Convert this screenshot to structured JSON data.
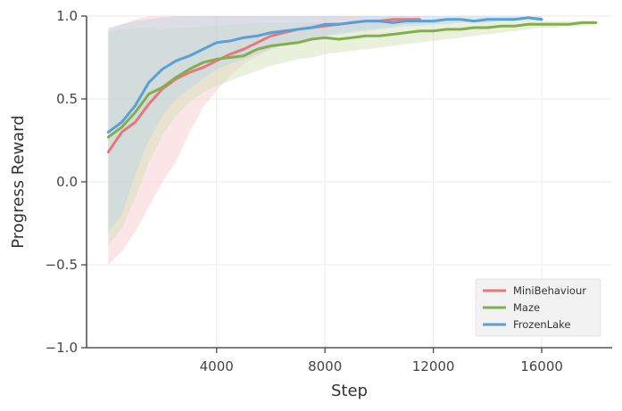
{
  "chart_data": {
    "type": "line",
    "xlabel": "Step",
    "ylabel": "Progress Reward",
    "xlim": [
      -800,
      18600
    ],
    "ylim": [
      -1.0,
      1.0
    ],
    "xticks": [
      4000,
      8000,
      12000,
      16000
    ],
    "xtick_labels": [
      "4000",
      "8000",
      "12000",
      "16000"
    ],
    "yticks": [
      -1.0,
      -0.5,
      0.0,
      0.5,
      1.0
    ],
    "ytick_labels": [
      "−1.0",
      "−0.5",
      "0.0",
      "0.5",
      "1.0"
    ],
    "grid": true,
    "legend_position": "bottom-right",
    "series": [
      {
        "name": "MiniBehaviour",
        "color": "#e8777c",
        "band_color": "#f8c6c8",
        "x": [
          0,
          500,
          1000,
          1500,
          2000,
          2500,
          3000,
          3500,
          4000,
          4500,
          5000,
          5500,
          6000,
          6500,
          7000,
          7500,
          8000,
          8500,
          9000,
          9500,
          10000,
          10500,
          11000,
          11500
        ],
        "y": [
          0.18,
          0.3,
          0.36,
          0.47,
          0.56,
          0.62,
          0.66,
          0.69,
          0.73,
          0.77,
          0.8,
          0.84,
          0.88,
          0.9,
          0.92,
          0.93,
          0.94,
          0.95,
          0.96,
          0.97,
          0.97,
          0.98,
          0.98,
          0.98
        ],
        "lower": [
          -0.5,
          -0.42,
          -0.3,
          -0.15,
          0.0,
          0.12,
          0.3,
          0.45,
          0.55,
          0.64,
          0.71,
          0.76,
          0.8,
          0.83,
          0.85,
          0.87,
          0.88,
          0.9,
          0.91,
          0.92,
          0.93,
          0.94,
          0.95,
          0.96
        ],
        "upper": [
          0.92,
          0.95,
          0.98,
          1.0,
          1.0,
          1.0,
          1.0,
          1.0,
          1.0,
          1.0,
          1.0,
          1.0,
          1.0,
          1.0,
          1.0,
          1.0,
          1.0,
          1.0,
          1.0,
          1.0,
          1.0,
          1.0,
          1.0,
          1.0
        ]
      },
      {
        "name": "Maze",
        "color": "#84ad4e",
        "band_color": "#cfe0b4",
        "x": [
          0,
          500,
          1000,
          1500,
          2000,
          2500,
          3000,
          3500,
          4000,
          4500,
          5000,
          5500,
          6000,
          6500,
          7000,
          7500,
          8000,
          8500,
          9000,
          9500,
          10000,
          10500,
          11000,
          11500,
          12000,
          12500,
          13000,
          13500,
          14000,
          14500,
          15000,
          15500,
          16000,
          16500,
          17000,
          17500,
          18000
        ],
        "y": [
          0.27,
          0.33,
          0.42,
          0.53,
          0.57,
          0.63,
          0.68,
          0.72,
          0.74,
          0.75,
          0.76,
          0.8,
          0.82,
          0.83,
          0.84,
          0.86,
          0.87,
          0.86,
          0.87,
          0.88,
          0.88,
          0.89,
          0.9,
          0.91,
          0.91,
          0.92,
          0.92,
          0.93,
          0.93,
          0.94,
          0.94,
          0.95,
          0.95,
          0.95,
          0.95,
          0.96,
          0.96
        ],
        "lower": [
          -0.38,
          -0.28,
          -0.1,
          0.12,
          0.28,
          0.4,
          0.48,
          0.54,
          0.58,
          0.61,
          0.64,
          0.67,
          0.7,
          0.72,
          0.74,
          0.75,
          0.77,
          0.78,
          0.79,
          0.8,
          0.81,
          0.82,
          0.83,
          0.84,
          0.85,
          0.86,
          0.87,
          0.88,
          0.89,
          0.9,
          0.91,
          0.92,
          0.93,
          0.93,
          0.94,
          0.94,
          0.95
        ],
        "upper": [
          0.9,
          0.92,
          0.93,
          0.93,
          0.92,
          0.93,
          0.93,
          0.94,
          0.94,
          0.95,
          0.95,
          0.96,
          0.96,
          0.96,
          0.96,
          0.96,
          0.96,
          0.96,
          0.96,
          0.97,
          0.97,
          0.97,
          0.97,
          0.97,
          0.97,
          0.97,
          0.97,
          0.97,
          0.97,
          0.97,
          0.97,
          0.97,
          0.97,
          0.97,
          0.97,
          0.97,
          0.97
        ]
      },
      {
        "name": "FrozenLake",
        "color": "#5a9fd8",
        "band_color": "#b7d3e6",
        "x": [
          0,
          500,
          1000,
          1500,
          2000,
          2500,
          3000,
          3500,
          4000,
          4500,
          5000,
          5500,
          6000,
          6500,
          7000,
          7500,
          8000,
          8500,
          9000,
          9500,
          10000,
          10500,
          11000,
          11500,
          12000,
          12500,
          13000,
          13500,
          14000,
          14500,
          15000,
          15500,
          16000
        ],
        "y": [
          0.3,
          0.36,
          0.46,
          0.6,
          0.68,
          0.73,
          0.76,
          0.8,
          0.84,
          0.85,
          0.87,
          0.88,
          0.9,
          0.91,
          0.92,
          0.93,
          0.95,
          0.95,
          0.96,
          0.97,
          0.97,
          0.96,
          0.97,
          0.97,
          0.97,
          0.98,
          0.98,
          0.97,
          0.98,
          0.98,
          0.98,
          0.99,
          0.98
        ],
        "lower": [
          -0.3,
          -0.2,
          0.05,
          0.25,
          0.4,
          0.5,
          0.56,
          0.62,
          0.68,
          0.71,
          0.74,
          0.77,
          0.8,
          0.83,
          0.85,
          0.86,
          0.88,
          0.89,
          0.9,
          0.91,
          0.92,
          0.93,
          0.94,
          0.94,
          0.95,
          0.95,
          0.96,
          0.96,
          0.96,
          0.97,
          0.97,
          0.97,
          0.97
        ],
        "upper": [
          0.93,
          0.95,
          0.97,
          0.98,
          0.99,
          1.0,
          1.0,
          1.0,
          1.0,
          1.0,
          1.0,
          1.0,
          1.0,
          1.0,
          1.0,
          1.0,
          1.0,
          1.0,
          1.0,
          1.0,
          1.0,
          1.0,
          1.0,
          1.0,
          1.0,
          1.0,
          1.0,
          1.0,
          1.0,
          1.0,
          1.0,
          1.0,
          1.0
        ]
      }
    ]
  }
}
